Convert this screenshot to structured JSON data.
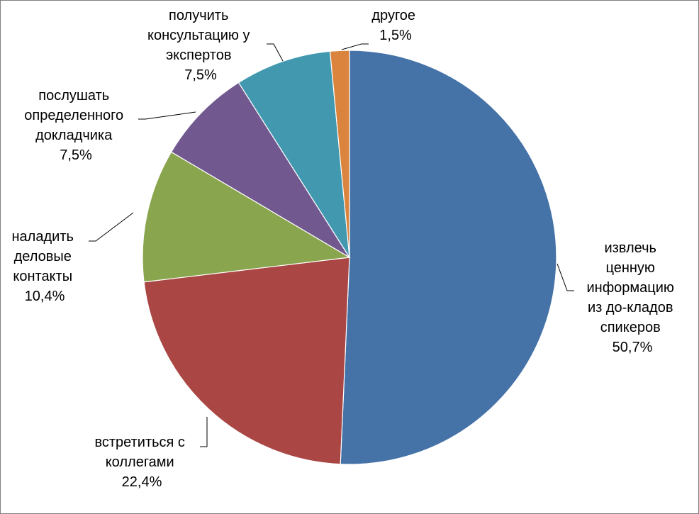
{
  "chart_data": {
    "type": "pie",
    "title": "",
    "start_angle_deg": 0,
    "direction": "clockwise",
    "slices": [
      {
        "label_lines": [
          "извлечь",
          "ценную",
          "информацию",
          "из до-кладов",
          "спикеров"
        ],
        "value": 50.7,
        "value_label": "50,7%",
        "color": "#4572A7"
      },
      {
        "label_lines": [
          "встретиться с",
          "коллегами"
        ],
        "value": 22.4,
        "value_label": "22,4%",
        "color": "#AA4643"
      },
      {
        "label_lines": [
          "наладить",
          "деловые",
          "контакты"
        ],
        "value": 10.4,
        "value_label": "10,4%",
        "color": "#89A54E"
      },
      {
        "label_lines": [
          "послушать",
          "определенного",
          "докладчика"
        ],
        "value": 7.5,
        "value_label": "7,5%",
        "color": "#71588F"
      },
      {
        "label_lines": [
          "получить",
          "консультацию у",
          "экспертов"
        ],
        "value": 7.5,
        "value_label": "7,5%",
        "color": "#4198AF"
      },
      {
        "label_lines": [
          "другое"
        ],
        "value": 1.5,
        "value_label": "1,5%",
        "color": "#DB843D"
      }
    ]
  }
}
